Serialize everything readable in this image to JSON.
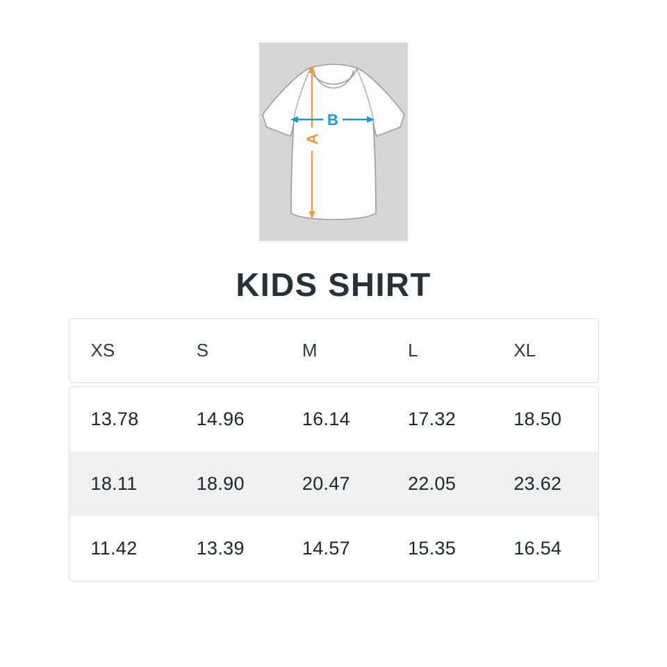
{
  "diagram": {
    "name": "tshirt-measurement-diagram",
    "bg_color": "#d6d6d6",
    "shirt_fill": "#fdfdfd",
    "shirt_outline": "#9c9c9c",
    "arrow_a_color": "#e59e41",
    "arrow_b_color": "#2596c8",
    "label_a": "A",
    "label_b": "B"
  },
  "title": "KIDS SHIRT",
  "size_table": {
    "headers": [
      "XS",
      "S",
      "M",
      "L",
      "XL"
    ],
    "rows": [
      [
        "13.78",
        "14.96",
        "16.14",
        "17.32",
        "18.50"
      ],
      [
        "18.11",
        "18.90",
        "20.47",
        "22.05",
        "23.62"
      ],
      [
        "11.42",
        "13.39",
        "14.57",
        "15.35",
        "16.54"
      ]
    ]
  }
}
